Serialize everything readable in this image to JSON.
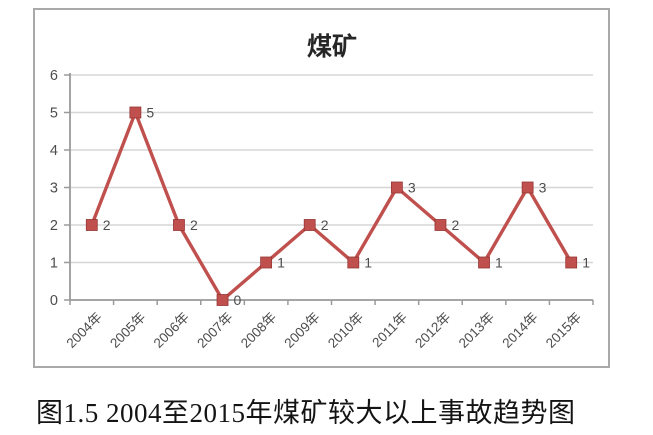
{
  "figure": {
    "caption": "图1.5 2004至2015年煤矿较大以上事故趋势图"
  },
  "chart_data": {
    "type": "line",
    "title": "煤矿",
    "categories": [
      "2004年",
      "2005年",
      "2006年",
      "2007年",
      "2008年",
      "2009年",
      "2010年",
      "2011年",
      "2012年",
      "2013年",
      "2014年",
      "2015年"
    ],
    "values": [
      2,
      5,
      2,
      0,
      1,
      2,
      1,
      3,
      2,
      1,
      3,
      1
    ],
    "data_labels": [
      2,
      5,
      2,
      0,
      1,
      2,
      1,
      3,
      2,
      1,
      3,
      1
    ],
    "xlabel": "",
    "ylabel": "",
    "ylim": [
      0,
      6
    ],
    "yticks": [
      0,
      1,
      2,
      3,
      4,
      5,
      6
    ],
    "grid": true,
    "legend_position": "none",
    "marker": "square",
    "colors": {
      "line": "#c0504d",
      "marker_fill": "#c0504d",
      "marker_stroke": "#963634",
      "gridline": "#d6d6d6",
      "axis": "#9a9a9a",
      "tick_label": "#4d4d4d",
      "data_label": "#4d4d4d",
      "title": "#262626",
      "frame_border": "#a9a9a9"
    }
  }
}
